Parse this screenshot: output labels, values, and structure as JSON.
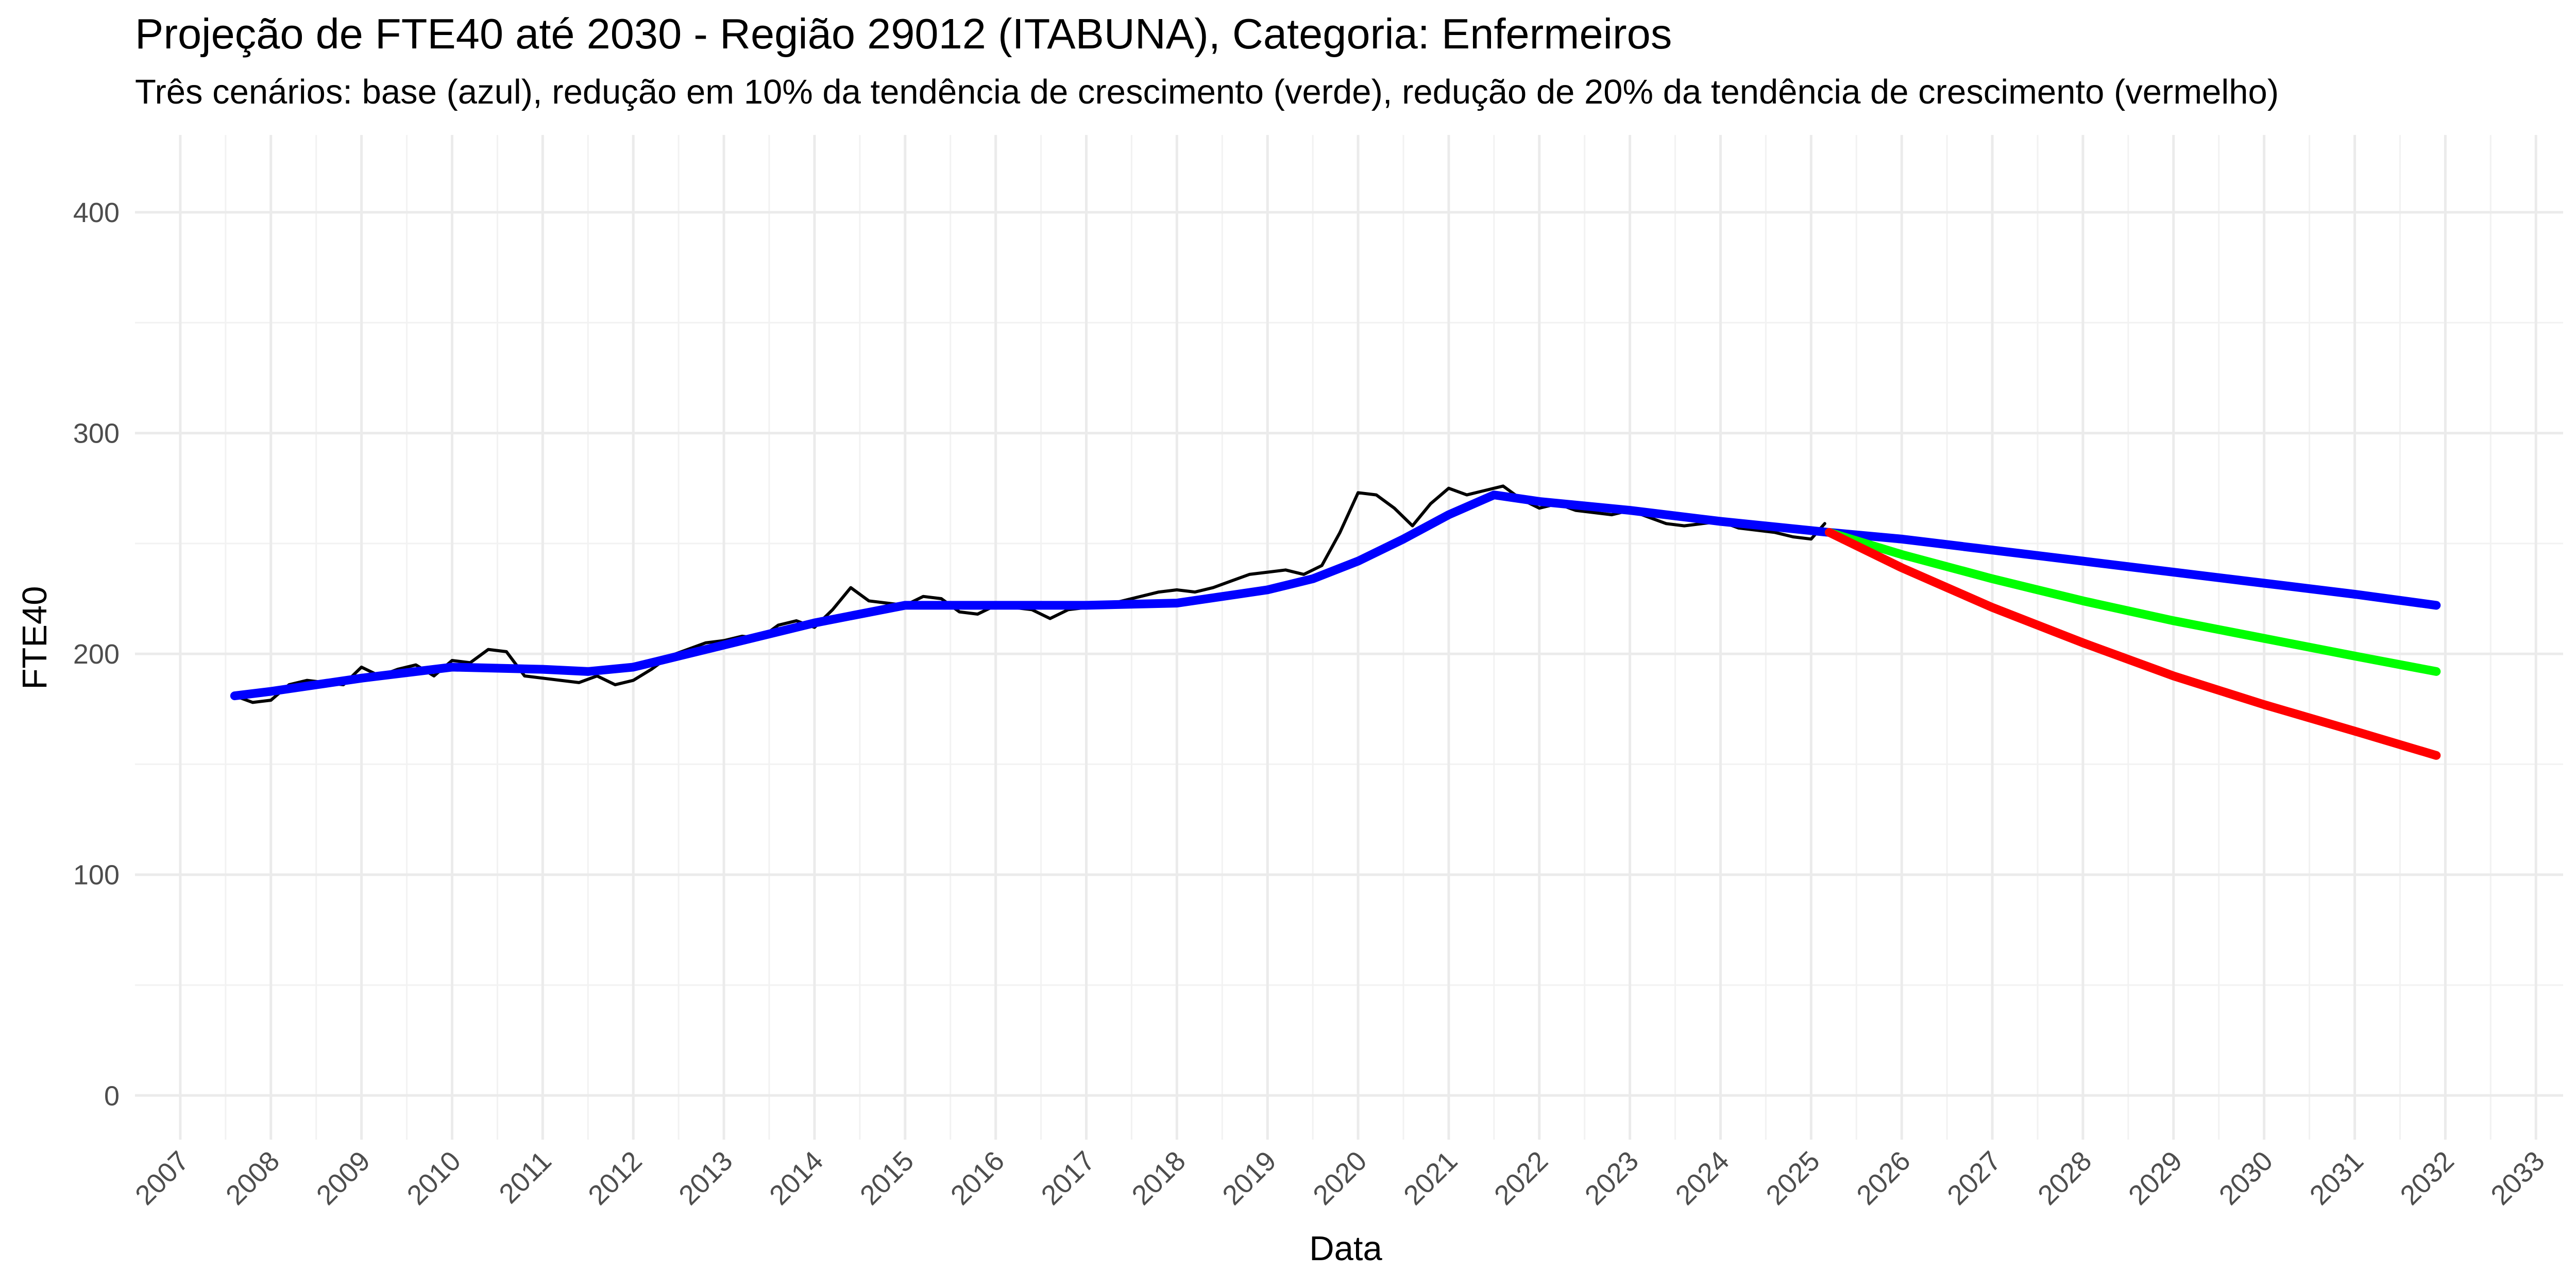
{
  "chart_data": {
    "type": "line",
    "title": "Projeção de FTE40 até 2030 - Região 29012 (ITABUNA), Categoria: Enfermeiros",
    "subtitle": "Três cenários: base (azul), redução em 10% da tendência de crescimento (verde), redução de 20% da tendência de crescimento (vermelho)",
    "xlabel": "Data",
    "ylabel": "FTE40",
    "xlim": [
      2006.5,
      2033.3
    ],
    "ylim": [
      -20,
      435
    ],
    "y_ticks": [
      0,
      100,
      200,
      300,
      400
    ],
    "x_ticks": [
      2007,
      2008,
      2009,
      2010,
      2011,
      2012,
      2013,
      2014,
      2015,
      2016,
      2017,
      2018,
      2019,
      2020,
      2021,
      2022,
      2023,
      2024,
      2025,
      2026,
      2027,
      2028,
      2029,
      2030,
      2031,
      2032,
      2033
    ],
    "grid": true,
    "legend": "none",
    "series": [
      {
        "color": "#000000",
        "x": [
          2007.6,
          2007.8,
          2008.0,
          2008.2,
          2008.4,
          2008.6,
          2008.8,
          2009.0,
          2009.2,
          2009.4,
          2009.6,
          2009.8,
          2010.0,
          2010.2,
          2010.4,
          2010.6,
          2010.8,
          2011.0,
          2011.2,
          2011.4,
          2011.6,
          2011.8,
          2012.0,
          2012.2,
          2012.4,
          2012.6,
          2012.8,
          2013.0,
          2013.2,
          2013.4,
          2013.6,
          2013.8,
          2014.0,
          2014.2,
          2014.4,
          2014.6,
          2014.8,
          2015.0,
          2015.2,
          2015.4,
          2015.6,
          2015.8,
          2016.0,
          2016.2,
          2016.4,
          2016.6,
          2016.8,
          2017.0,
          2017.2,
          2017.4,
          2017.6,
          2017.8,
          2018.0,
          2018.2,
          2018.4,
          2018.6,
          2018.8,
          2019.0,
          2019.2,
          2019.4,
          2019.6,
          2019.8,
          2020.0,
          2020.2,
          2020.4,
          2020.6,
          2020.8,
          2021.0,
          2021.2,
          2021.4,
          2021.6,
          2021.8,
          2022.0,
          2022.2,
          2022.4,
          2022.6,
          2022.8,
          2023.0,
          2023.2,
          2023.4,
          2023.6,
          2023.8,
          2024.0,
          2024.2,
          2024.4,
          2024.6,
          2024.8,
          2025.0,
          2025.15
        ],
        "values": [
          181,
          178,
          179,
          186,
          188,
          187,
          186,
          194,
          190,
          193,
          195,
          190,
          197,
          196,
          202,
          201,
          190,
          189,
          188,
          187,
          190,
          186,
          188,
          193,
          199,
          202,
          205,
          206,
          208,
          207,
          213,
          215,
          212,
          220,
          230,
          224,
          223,
          222,
          226,
          225,
          219,
          218,
          222,
          221,
          220,
          216,
          220,
          221,
          222,
          224,
          226,
          228,
          229,
          228,
          230,
          233,
          236,
          237,
          238,
          236,
          240,
          255,
          273,
          272,
          266,
          258,
          268,
          275,
          272,
          274,
          276,
          270,
          266,
          268,
          265,
          264,
          263,
          265,
          262,
          259,
          258,
          259,
          260,
          257,
          256,
          255,
          253,
          252,
          259
        ]
      },
      {
        "color": "#0000ff",
        "x": [
          2007.6,
          2008.0,
          2009.0,
          2010.0,
          2011.0,
          2011.5,
          2012.0,
          2013.0,
          2014.0,
          2015.0,
          2016.0,
          2017.0,
          2018.0,
          2019.0,
          2019.5,
          2020.0,
          2020.5,
          2021.0,
          2021.5,
          2022.0,
          2023.0,
          2024.0,
          2025.2,
          2026.0,
          2027.0,
          2028.0,
          2029.0,
          2030.0,
          2031.0,
          2031.9
        ],
        "values": [
          181,
          183,
          189,
          194,
          193,
          192,
          194,
          204,
          214,
          222,
          222,
          222,
          223,
          229,
          234,
          242,
          252,
          263,
          272,
          269,
          265,
          260,
          255,
          252,
          247,
          242,
          237,
          232,
          227,
          222
        ]
      },
      {
        "color": "#00ff00",
        "x": [
          2025.2,
          2026.0,
          2027.0,
          2028.0,
          2029.0,
          2030.0,
          2031.0,
          2031.9
        ],
        "values": [
          255,
          245,
          234,
          224,
          215,
          207,
          199,
          192
        ]
      },
      {
        "color": "#ff0000",
        "x": [
          2025.2,
          2026.0,
          2027.0,
          2028.0,
          2029.0,
          2030.0,
          2031.0,
          2031.9
        ],
        "values": [
          255,
          239,
          221,
          205,
          190,
          177,
          165,
          154
        ]
      }
    ]
  }
}
